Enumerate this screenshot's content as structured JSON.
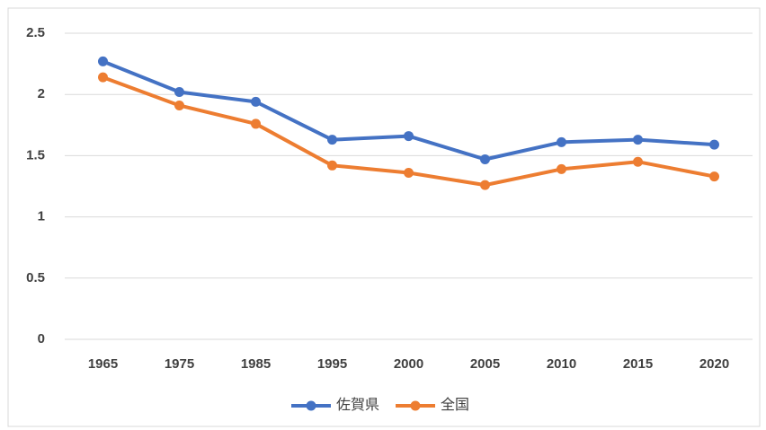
{
  "chart_data": {
    "type": "line",
    "categories": [
      "1965",
      "1975",
      "1985",
      "1995",
      "2000",
      "2005",
      "2010",
      "2015",
      "2020"
    ],
    "series": [
      {
        "name": "佐賀県",
        "color": "#4472c4",
        "values": [
          2.27,
          2.02,
          1.94,
          1.63,
          1.66,
          1.47,
          1.61,
          1.63,
          1.59
        ]
      },
      {
        "name": "全国",
        "color": "#ed7d31",
        "values": [
          2.14,
          1.91,
          1.76,
          1.42,
          1.36,
          1.26,
          1.39,
          1.45,
          1.33
        ]
      }
    ],
    "ylim": [
      0,
      2.5
    ],
    "yticks": [
      0,
      0.5,
      1,
      1.5,
      2,
      2.5
    ],
    "grid": true,
    "legend": "bottom"
  }
}
